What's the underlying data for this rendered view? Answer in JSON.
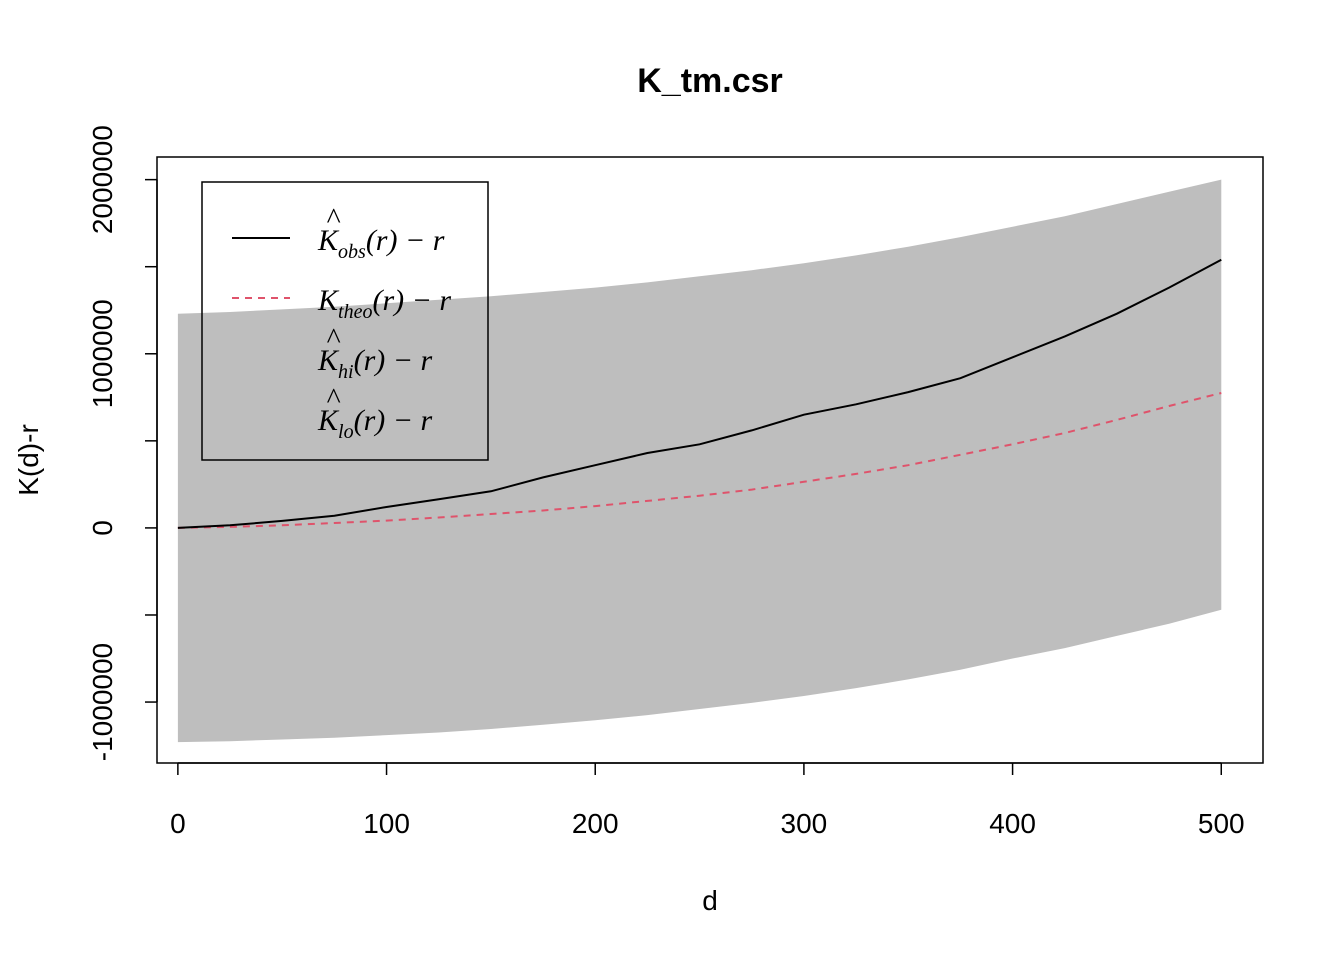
{
  "chart_data": {
    "type": "line",
    "title": "K_tm.csr",
    "xlabel": "d",
    "ylabel": "K(d)-r",
    "xlim": [
      -10,
      520
    ],
    "ylim": [
      -1350000,
      2130000
    ],
    "x_ticks": [
      0,
      100,
      200,
      300,
      400,
      500
    ],
    "x_tick_labels": [
      "0",
      "100",
      "200",
      "300",
      "400",
      "500"
    ],
    "y_ticks": [
      -1000000,
      -500000,
      0,
      500000,
      1000000,
      1500000,
      2000000
    ],
    "y_tick_labels": [
      "-1000000",
      "",
      "0",
      "",
      "1000000",
      "",
      "2000000"
    ],
    "grid": false,
    "legend_position": "top-left",
    "colors": {
      "obs": "#000000",
      "theo": "#df536b",
      "envelope": "#bebebe"
    },
    "legend": [
      {
        "key": "obs",
        "base": "K",
        "hat": true,
        "sub": "obs",
        "tail": "(r) − r",
        "line": "solid"
      },
      {
        "key": "theo",
        "base": "K",
        "hat": false,
        "sub": "theo",
        "tail": "(r) − r",
        "line": "dashed"
      },
      {
        "key": "hi",
        "base": "K",
        "hat": true,
        "sub": "hi",
        "tail": "(r) − r",
        "line": "none"
      },
      {
        "key": "lo",
        "base": "K",
        "hat": true,
        "sub": "lo",
        "tail": "(r) − r",
        "line": "none"
      }
    ],
    "x": [
      0,
      25,
      50,
      75,
      100,
      125,
      150,
      175,
      200,
      225,
      250,
      275,
      300,
      325,
      350,
      375,
      400,
      425,
      450,
      475,
      500
    ],
    "series": [
      {
        "key": "obs",
        "values": [
          0,
          15000,
          40000,
          70000,
          120000,
          165000,
          210000,
          290000,
          360000,
          430000,
          480000,
          560000,
          650000,
          710000,
          780000,
          860000,
          980000,
          1100000,
          1230000,
          1380000,
          1540000
        ]
      },
      {
        "key": "theo",
        "values": [
          0,
          6000,
          15000,
          28000,
          42000,
          60000,
          80000,
          100000,
          125000,
          155000,
          185000,
          220000,
          265000,
          310000,
          360000,
          420000,
          480000,
          545000,
          620000,
          700000,
          775000
        ]
      },
      {
        "key": "hi",
        "values": [
          1230000,
          1240000,
          1255000,
          1270000,
          1290000,
          1310000,
          1330000,
          1355000,
          1380000,
          1410000,
          1445000,
          1480000,
          1520000,
          1565000,
          1615000,
          1670000,
          1730000,
          1790000,
          1860000,
          1930000,
          2000000
        ]
      },
      {
        "key": "lo",
        "values": [
          -1230000,
          -1225000,
          -1215000,
          -1205000,
          -1190000,
          -1175000,
          -1155000,
          -1130000,
          -1105000,
          -1075000,
          -1040000,
          -1005000,
          -965000,
          -920000,
          -870000,
          -815000,
          -750000,
          -690000,
          -620000,
          -550000,
          -470000
        ]
      }
    ]
  }
}
